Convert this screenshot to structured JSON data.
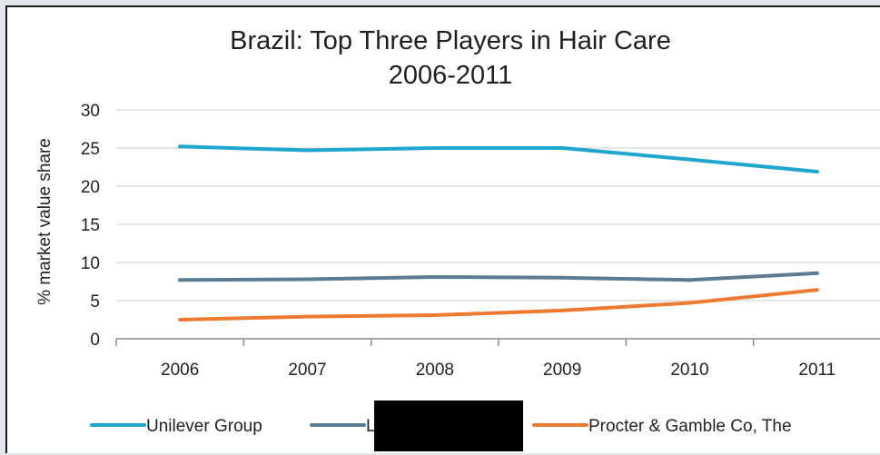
{
  "chart_data": {
    "type": "line",
    "title": "Brazil: Top Three Players in Hair Care",
    "subtitle": "2006-2011",
    "ylabel": "% market value share",
    "xlabel": "",
    "ylim": [
      0,
      30
    ],
    "yticks": [
      0,
      5,
      10,
      15,
      20,
      25,
      30
    ],
    "grid": true,
    "legend_position": "bottom",
    "categories": [
      "2006",
      "2007",
      "2008",
      "2009",
      "2010",
      "2011"
    ],
    "series": [
      {
        "name": "Unilever Group",
        "color": "#1ea6cf",
        "values": [
          25.2,
          24.7,
          25.0,
          25.0,
          23.5,
          21.9
        ]
      },
      {
        "name": "L",
        "color": "#5b7b93",
        "values": [
          7.7,
          7.8,
          8.1,
          8.0,
          7.7,
          8.6
        ]
      },
      {
        "name": "Procter & Gamble Co, The",
        "color": "#ee7a32",
        "values": [
          2.5,
          2.9,
          3.1,
          3.7,
          4.7,
          6.4
        ]
      }
    ]
  }
}
